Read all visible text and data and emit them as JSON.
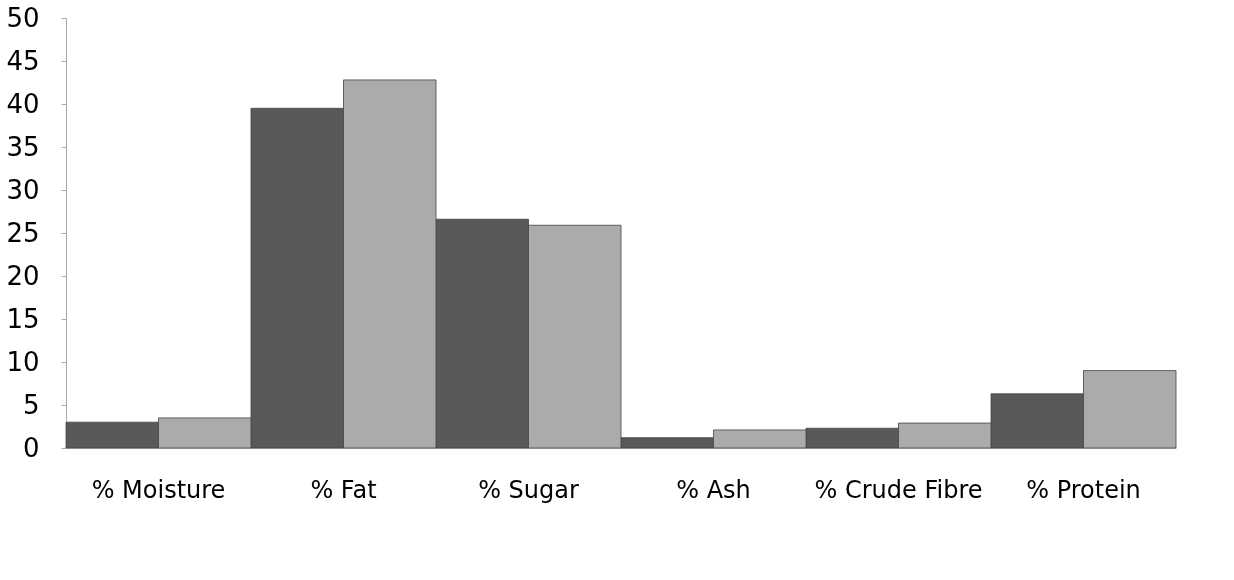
{
  "chart_data": {
    "type": "bar",
    "categories": [
      "% Moisture",
      "% Fat",
      "% Sugar",
      "% Ash",
      "% Crude Fibre",
      "% Protein"
    ],
    "series": [
      {
        "color": "#595959",
        "values": [
          3,
          39.5,
          26.6,
          1.2,
          2.3,
          6.3
        ]
      },
      {
        "color": "#ababab",
        "values": [
          3.5,
          42.8,
          25.9,
          2.1,
          2.9,
          9
        ]
      }
    ],
    "ylim": [
      0,
      50
    ],
    "yticks": [
      0,
      5,
      10,
      15,
      20,
      25,
      30,
      35,
      40,
      45,
      50
    ],
    "grid": false,
    "legend": false
  }
}
